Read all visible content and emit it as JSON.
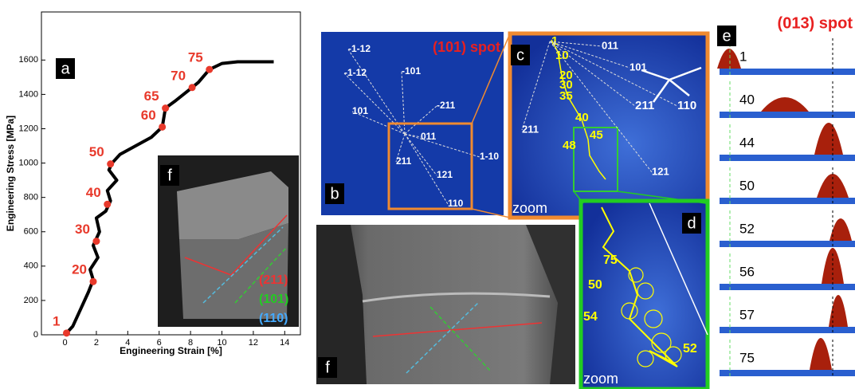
{
  "chart_data": {
    "type": "line",
    "panel_label": "a",
    "x_label": "Engineering Strain [%]",
    "y_label": "Engineering Stress [MPa]",
    "xlim": [
      -1.5,
      15
    ],
    "ylim": [
      0,
      1880
    ],
    "xticks": [
      0,
      2,
      4,
      6,
      8,
      10,
      12,
      14
    ],
    "yticks": [
      0,
      200,
      400,
      600,
      800,
      1000,
      1200,
      1400,
      1600
    ],
    "color": "#000000",
    "x": [
      0,
      0.5,
      1,
      1.5,
      1.8,
      1.6,
      2.1,
      1.8,
      2.2,
      2.0,
      2.6,
      2.9,
      2.7,
      3.3,
      2.8,
      3.0,
      3.5,
      4.5,
      5.5,
      6.2,
      6.4,
      7.0,
      8.1,
      8.5,
      9.2,
      10,
      11,
      13.3
    ],
    "values": [
      0,
      50,
      150,
      250,
      320,
      380,
      450,
      520,
      600,
      680,
      720,
      780,
      840,
      900,
      960,
      1000,
      1050,
      1100,
      1150,
      1210,
      1320,
      1360,
      1440,
      1470,
      1545,
      1580,
      1590,
      1590
    ],
    "points": {
      "color": "#e8392b",
      "labels": [
        "1",
        "20",
        "30",
        "40",
        "50",
        "60",
        "65",
        "70",
        "75"
      ],
      "x": [
        0.1,
        1.8,
        2.0,
        2.7,
        2.9,
        6.2,
        6.4,
        8.1,
        9.2
      ],
      "values": [
        10,
        310,
        545,
        760,
        995,
        1210,
        1320,
        1440,
        1545
      ]
    },
    "inset": {
      "label": "f",
      "planes": [
        "(211)",
        "(101)",
        "(110)"
      ]
    }
  },
  "panel_b": {
    "label": "b",
    "title": "(101) spot",
    "directions": [
      "-1-12",
      "-1-12",
      "-101",
      "101",
      "-211",
      "011",
      "1-10",
      "211",
      "121",
      "110"
    ]
  },
  "panel_c": {
    "label": "c",
    "zoom": "zoom",
    "frames": [
      "1",
      "10",
      "20",
      "30",
      "35",
      "40",
      "45",
      "48"
    ],
    "directions": [
      "011",
      "101",
      "211",
      "110",
      "121",
      "211"
    ]
  },
  "panel_d": {
    "label": "d",
    "zoom": "zoom",
    "frames": [
      "75",
      "50",
      "54",
      "52"
    ]
  },
  "panel_f": {
    "label": "f"
  },
  "panel_e": {
    "label": "e",
    "title": "(013) spot",
    "frames": [
      "1",
      "40",
      "44",
      "50",
      "52",
      "56",
      "57",
      "75"
    ]
  }
}
